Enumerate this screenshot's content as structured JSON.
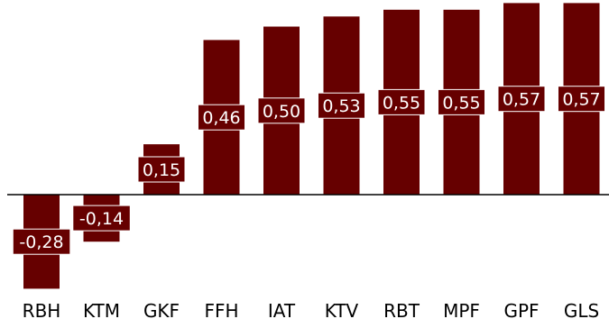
{
  "chart_data": {
    "type": "bar",
    "categories": [
      "RBH",
      "KTM",
      "GKF",
      "FFH",
      "IAT",
      "KTV",
      "RBT",
      "MPF",
      "GPF",
      "GLS"
    ],
    "values": [
      -0.28,
      -0.14,
      0.15,
      0.46,
      0.5,
      0.53,
      0.55,
      0.55,
      0.57,
      0.57
    ],
    "data_labels": [
      "-0,28",
      "-0,14",
      "0,15",
      "0,46",
      "0,50",
      "0,53",
      "0,55",
      "0,55",
      "0,57",
      "0,57"
    ],
    "title": "",
    "xlabel": "",
    "ylabel": "",
    "ylim": [
      -0.28,
      0.57
    ],
    "grid": false,
    "legend": "none",
    "colors": {
      "bar": "#660000",
      "label_bg": "#660000",
      "label_text": "#ffffff",
      "axis": "#000000",
      "tick_text": "#000000"
    }
  }
}
